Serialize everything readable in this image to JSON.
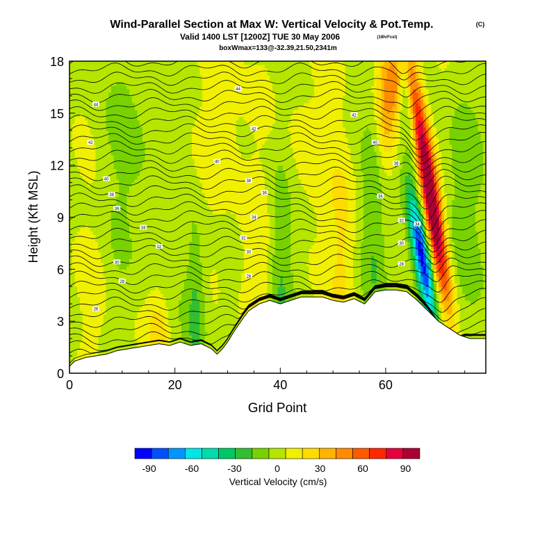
{
  "title": {
    "main": "Wind-Parallel Section at Max W: Vertical Velocity & Pot.Temp.",
    "copyright": "(C)",
    "valid": "Valid 1400 LST [1200Z] TUE 30 May 2006",
    "forecast": "(18hrFcst)",
    "box": "boxWmax=133@-32.39,21.50,2341m"
  },
  "chart_data": {
    "type": "heatmap",
    "xlabel": "Grid Point",
    "ylabel": "Height (Kft MSL)",
    "xlim": [
      0,
      79
    ],
    "ylim": [
      0,
      18
    ],
    "xticks": [
      0,
      20,
      40,
      60
    ],
    "yticks": [
      0,
      3,
      6,
      9,
      12,
      15,
      18
    ],
    "colorbar": {
      "label": "Vertical Velocity (cm/s)",
      "ticks": [
        -90,
        -60,
        -30,
        0,
        30,
        60,
        90
      ],
      "min": -100,
      "max": 100,
      "colors": [
        "#0000ff",
        "#0050ff",
        "#0096ff",
        "#00e6e6",
        "#00dcaa",
        "#00c864",
        "#32be32",
        "#78d200",
        "#b4e600",
        "#f0f000",
        "#ffdc00",
        "#ffb400",
        "#ff8c00",
        "#ff5a00",
        "#ff2800",
        "#e6003c",
        "#aa0032"
      ]
    },
    "terrain_height": [
      {
        "x": 0,
        "h": 0.4
      },
      {
        "x": 1,
        "h": 0.7
      },
      {
        "x": 3,
        "h": 0.9
      },
      {
        "x": 5,
        "h": 1.0
      },
      {
        "x": 7,
        "h": 1.1
      },
      {
        "x": 9,
        "h": 1.3
      },
      {
        "x": 11,
        "h": 1.4
      },
      {
        "x": 13,
        "h": 1.5
      },
      {
        "x": 15,
        "h": 1.6
      },
      {
        "x": 17,
        "h": 1.7
      },
      {
        "x": 19,
        "h": 1.6
      },
      {
        "x": 21,
        "h": 1.8
      },
      {
        "x": 23,
        "h": 1.6
      },
      {
        "x": 25,
        "h": 1.7
      },
      {
        "x": 27,
        "h": 1.4
      },
      {
        "x": 28,
        "h": 1.1
      },
      {
        "x": 29,
        "h": 1.4
      },
      {
        "x": 30,
        "h": 1.8
      },
      {
        "x": 31,
        "h": 2.3
      },
      {
        "x": 33,
        "h": 3.2
      },
      {
        "x": 34,
        "h": 3.6
      },
      {
        "x": 36,
        "h": 4.0
      },
      {
        "x": 38,
        "h": 4.2
      },
      {
        "x": 40,
        "h": 4.0
      },
      {
        "x": 42,
        "h": 4.2
      },
      {
        "x": 44,
        "h": 4.4
      },
      {
        "x": 46,
        "h": 4.4
      },
      {
        "x": 48,
        "h": 4.4
      },
      {
        "x": 50,
        "h": 4.2
      },
      {
        "x": 52,
        "h": 4.1
      },
      {
        "x": 54,
        "h": 4.3
      },
      {
        "x": 56,
        "h": 4.0
      },
      {
        "x": 58,
        "h": 4.7
      },
      {
        "x": 60,
        "h": 4.8
      },
      {
        "x": 62,
        "h": 4.8
      },
      {
        "x": 64,
        "h": 4.7
      },
      {
        "x": 66,
        "h": 4.2
      },
      {
        "x": 68,
        "h": 3.6
      },
      {
        "x": 70,
        "h": 3.0
      },
      {
        "x": 72,
        "h": 2.6
      },
      {
        "x": 74,
        "h": 2.2
      },
      {
        "x": 76,
        "h": 2.0
      },
      {
        "x": 79,
        "h": 2.0
      }
    ],
    "updrafts": [
      {
        "x": 5,
        "z": 4.0,
        "w": 8,
        "sx": 1.8,
        "sz": 3.5,
        "tilt": 0.0
      },
      {
        "x": 17,
        "z": 2.5,
        "w": 22,
        "sx": 1.5,
        "sz": 1.6,
        "tilt": 0.0
      },
      {
        "x": 24,
        "z": 3.5,
        "w": -25,
        "sx": 1.4,
        "sz": 3.5,
        "tilt": 0.0
      },
      {
        "x": 35,
        "z": 5.0,
        "w": 15,
        "sx": 2.0,
        "sz": 4.0,
        "tilt": 0.0
      },
      {
        "x": 40,
        "z": 6.0,
        "w": -20,
        "sx": 1.6,
        "sz": 5.0,
        "tilt": 0.0
      },
      {
        "x": 52,
        "z": 7.5,
        "w": 20,
        "sx": 2.0,
        "sz": 5.0,
        "tilt": 0.0
      },
      {
        "x": 58,
        "z": 8.0,
        "w": -22,
        "sx": 1.8,
        "sz": 5.0,
        "tilt": 0.0
      },
      {
        "x": 67,
        "z": 6.5,
        "w": -95,
        "sx": 1.1,
        "sz": 2.6,
        "tilt": -0.55
      },
      {
        "x": 69,
        "z": 9.0,
        "w": 100,
        "sx": 1.2,
        "sz": 3.5,
        "tilt": -0.55
      },
      {
        "x": 66,
        "z": 15.0,
        "w": 70,
        "sx": 1.3,
        "sz": 3.5,
        "tilt": -0.55
      },
      {
        "x": 64,
        "z": 16.0,
        "w": -40,
        "sx": 1.2,
        "sz": 4.0,
        "tilt": -0.55
      },
      {
        "x": 60,
        "z": 16.0,
        "w": 35,
        "sx": 1.3,
        "sz": 3.0,
        "tilt": 0.0
      },
      {
        "x": 62,
        "z": 17.2,
        "w": 45,
        "sx": 1.0,
        "sz": 1.5,
        "tilt": 0.0
      },
      {
        "x": 74,
        "z": 10.0,
        "w": -15,
        "sx": 2.5,
        "sz": 5.0,
        "tilt": 0.0
      },
      {
        "x": 12,
        "z": 13.0,
        "w": -12,
        "sx": 3.0,
        "sz": 5.0,
        "tilt": 0.0
      },
      {
        "x": 30,
        "z": 14.0,
        "w": 12,
        "sx": 3.0,
        "sz": 4.0,
        "tilt": 0.0
      },
      {
        "x": 44,
        "z": 13.0,
        "w": 10,
        "sx": 3.0,
        "sz": 4.0,
        "tilt": 0.0
      }
    ],
    "contour_labels": [
      {
        "x": 5,
        "z": 15.5,
        "text": "44"
      },
      {
        "x": 4,
        "z": 13.3,
        "text": "42"
      },
      {
        "x": 7,
        "z": 11.2,
        "text": "40"
      },
      {
        "x": 8,
        "z": 10.3,
        "text": "38"
      },
      {
        "x": 9,
        "z": 9.5,
        "text": "36"
      },
      {
        "x": 14,
        "z": 8.4,
        "text": "34"
      },
      {
        "x": 17,
        "z": 7.3,
        "text": "32"
      },
      {
        "x": 9,
        "z": 6.4,
        "text": "30"
      },
      {
        "x": 10,
        "z": 5.3,
        "text": "28"
      },
      {
        "x": 5,
        "z": 3.7,
        "text": "26"
      },
      {
        "x": 32,
        "z": 16.4,
        "text": "44"
      },
      {
        "x": 35,
        "z": 14.1,
        "text": "42"
      },
      {
        "x": 28,
        "z": 12.2,
        "text": "40"
      },
      {
        "x": 34,
        "z": 11.1,
        "text": "38"
      },
      {
        "x": 37,
        "z": 10.4,
        "text": "36"
      },
      {
        "x": 35,
        "z": 9.0,
        "text": "34"
      },
      {
        "x": 33,
        "z": 7.8,
        "text": "32"
      },
      {
        "x": 34,
        "z": 7.0,
        "text": "30"
      },
      {
        "x": 34,
        "z": 5.6,
        "text": "28"
      },
      {
        "x": 54,
        "z": 14.9,
        "text": "42"
      },
      {
        "x": 58,
        "z": 13.3,
        "text": "40"
      },
      {
        "x": 62,
        "z": 12.1,
        "text": "38"
      },
      {
        "x": 59,
        "z": 10.2,
        "text": "36"
      },
      {
        "x": 63,
        "z": 8.8,
        "text": "32"
      },
      {
        "x": 63,
        "z": 7.5,
        "text": "30"
      },
      {
        "x": 63,
        "z": 6.3,
        "text": "28"
      },
      {
        "x": 66,
        "z": 8.6,
        "text": "34"
      }
    ]
  }
}
